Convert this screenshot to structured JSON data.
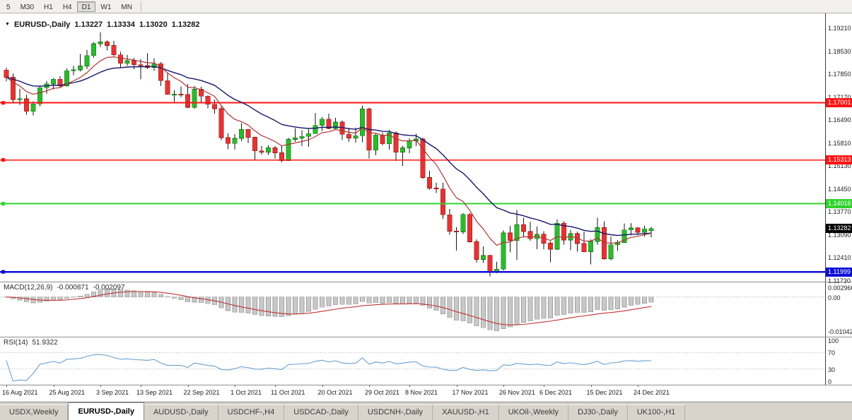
{
  "toolbar": {
    "timeframes": [
      "5",
      "M30",
      "H1",
      "H4",
      "D1",
      "W1",
      "MN"
    ],
    "active": "D1"
  },
  "chart": {
    "header": {
      "symbol": "EURUSD-,Daily",
      "open": "1.13227",
      "high": "1.13334",
      "low": "1.13020",
      "close": "1.13282"
    }
  },
  "price_axis": {
    "labels": [
      "1.19210",
      "1.18530",
      "1.17850",
      "1.17170",
      "1.16490",
      "1.15810",
      "1.15130",
      "1.14450",
      "1.13770",
      "1.13090",
      "1.12410",
      "1.11730"
    ]
  },
  "colors": {
    "bull": "#2eb82e",
    "bull_border": "#157a15",
    "bear": "#e23434",
    "bear_border": "#9e1a1a",
    "wick": "#151515",
    "macd_hist": "#c9c9c9",
    "macd_hist_border": "#9f9f9f",
    "macd_signal": "#c23333",
    "rsi_line": "#6aa0cf",
    "current_tag_bg": "#000000"
  },
  "chart_data": {
    "type": "candlestick",
    "symbol": "EURUSD-",
    "timeframe": "Daily",
    "y_range": [
      1.1173,
      1.1921
    ],
    "ohlc": [
      [
        1.1797,
        1.1804,
        1.1764,
        1.1776
      ],
      [
        1.1776,
        1.1787,
        1.1702,
        1.171
      ],
      [
        1.171,
        1.1742,
        1.1694,
        1.1712
      ],
      [
        1.1712,
        1.1724,
        1.1665,
        1.1675
      ],
      [
        1.1675,
        1.1705,
        1.1663,
        1.1697
      ],
      [
        1.1697,
        1.175,
        1.169,
        1.1745
      ],
      [
        1.1745,
        1.1765,
        1.1727,
        1.1756
      ],
      [
        1.1756,
        1.1774,
        1.174,
        1.177
      ],
      [
        1.177,
        1.1779,
        1.1745,
        1.1751
      ],
      [
        1.1751,
        1.1802,
        1.1748,
        1.1795
      ],
      [
        1.1795,
        1.181,
        1.1782,
        1.1798
      ],
      [
        1.1798,
        1.1845,
        1.1793,
        1.1809
      ],
      [
        1.1809,
        1.1857,
        1.18,
        1.184
      ],
      [
        1.184,
        1.188,
        1.1834,
        1.1875
      ],
      [
        1.1875,
        1.1909,
        1.1865,
        1.188
      ],
      [
        1.188,
        1.1885,
        1.1855,
        1.187
      ],
      [
        1.187,
        1.1884,
        1.1838,
        1.1842
      ],
      [
        1.1842,
        1.1851,
        1.1805,
        1.1817
      ],
      [
        1.1817,
        1.1842,
        1.181,
        1.1825
      ],
      [
        1.1825,
        1.1833,
        1.18,
        1.1813
      ],
      [
        1.1813,
        1.183,
        1.177,
        1.181
      ],
      [
        1.181,
        1.1847,
        1.18,
        1.1805
      ],
      [
        1.1805,
        1.1832,
        1.1795,
        1.1816
      ],
      [
        1.1816,
        1.1821,
        1.175,
        1.1766
      ],
      [
        1.1766,
        1.1788,
        1.1724,
        1.1725
      ],
      [
        1.1725,
        1.1738,
        1.17,
        1.1726
      ],
      [
        1.1726,
        1.1749,
        1.1717,
        1.1725
      ],
      [
        1.1725,
        1.1756,
        1.1684,
        1.1687
      ],
      [
        1.1687,
        1.175,
        1.1683,
        1.174
      ],
      [
        1.174,
        1.1748,
        1.1701,
        1.172
      ],
      [
        1.172,
        1.1722,
        1.1684,
        1.1696
      ],
      [
        1.1696,
        1.171,
        1.1668,
        1.1683
      ],
      [
        1.1683,
        1.169,
        1.159,
        1.1597
      ],
      [
        1.1597,
        1.161,
        1.1563,
        1.158
      ],
      [
        1.158,
        1.1608,
        1.1562,
        1.1595
      ],
      [
        1.1595,
        1.164,
        1.1587,
        1.1621
      ],
      [
        1.1621,
        1.1622,
        1.1581,
        1.1598
      ],
      [
        1.1598,
        1.16,
        1.1529,
        1.1558
      ],
      [
        1.1558,
        1.1572,
        1.1547,
        1.1554
      ],
      [
        1.1554,
        1.1575,
        1.1546,
        1.1567
      ],
      [
        1.1567,
        1.1572,
        1.1535,
        1.1552
      ],
      [
        1.1552,
        1.1572,
        1.1524,
        1.1529
      ],
      [
        1.1529,
        1.1597,
        1.1529,
        1.1592
      ],
      [
        1.1592,
        1.1625,
        1.1585,
        1.1596
      ],
      [
        1.1596,
        1.1619,
        1.1572,
        1.1601
      ],
      [
        1.1601,
        1.1622,
        1.157,
        1.1609
      ],
      [
        1.1609,
        1.167,
        1.1608,
        1.1633
      ],
      [
        1.1633,
        1.1658,
        1.1617,
        1.1652
      ],
      [
        1.1652,
        1.1668,
        1.1622,
        1.1624
      ],
      [
        1.1624,
        1.1656,
        1.162,
        1.1643
      ],
      [
        1.1643,
        1.1648,
        1.159,
        1.1607
      ],
      [
        1.1607,
        1.1626,
        1.1585,
        1.1596
      ],
      [
        1.1596,
        1.1627,
        1.1582,
        1.1603
      ],
      [
        1.1603,
        1.1692,
        1.1583,
        1.1682
      ],
      [
        1.1682,
        1.1686,
        1.1535,
        1.156
      ],
      [
        1.156,
        1.1609,
        1.1545,
        1.1605
      ],
      [
        1.1605,
        1.1612,
        1.1575,
        1.1579
      ],
      [
        1.1579,
        1.162,
        1.1562,
        1.1611
      ],
      [
        1.1611,
        1.1616,
        1.1528,
        1.1554
      ],
      [
        1.1554,
        1.1573,
        1.1513,
        1.1567
      ],
      [
        1.1567,
        1.1595,
        1.1551,
        1.1588
      ],
      [
        1.1588,
        1.1609,
        1.1572,
        1.1593
      ],
      [
        1.1593,
        1.1597,
        1.1475,
        1.1479
      ],
      [
        1.1479,
        1.1499,
        1.1443,
        1.1448
      ],
      [
        1.1448,
        1.1464,
        1.1433,
        1.1445
      ],
      [
        1.1445,
        1.1464,
        1.1356,
        1.1369
      ],
      [
        1.1369,
        1.1386,
        1.131,
        1.132
      ],
      [
        1.132,
        1.1332,
        1.1263,
        1.1318
      ],
      [
        1.1318,
        1.1374,
        1.1312,
        1.137
      ],
      [
        1.137,
        1.1374,
        1.1287,
        1.1289
      ],
      [
        1.1289,
        1.1296,
        1.1227,
        1.1237
      ],
      [
        1.1237,
        1.1275,
        1.1226,
        1.1248
      ],
      [
        1.1248,
        1.125,
        1.1186,
        1.12
      ],
      [
        1.12,
        1.123,
        1.1196,
        1.1208
      ],
      [
        1.1208,
        1.1323,
        1.1204,
        1.1315
      ],
      [
        1.1315,
        1.1336,
        1.1258,
        1.1293
      ],
      [
        1.1293,
        1.1383,
        1.1235,
        1.1339
      ],
      [
        1.1339,
        1.136,
        1.1302,
        1.1319
      ],
      [
        1.1319,
        1.1348,
        1.1292,
        1.1298
      ],
      [
        1.1298,
        1.1334,
        1.1267,
        1.1311
      ],
      [
        1.1311,
        1.132,
        1.1267,
        1.1285
      ],
      [
        1.1285,
        1.129,
        1.1228,
        1.1267
      ],
      [
        1.1267,
        1.1355,
        1.1265,
        1.1344
      ],
      [
        1.1344,
        1.135,
        1.128,
        1.1294
      ],
      [
        1.1294,
        1.1324,
        1.1264,
        1.1313
      ],
      [
        1.1313,
        1.1319,
        1.126,
        1.1284
      ],
      [
        1.1284,
        1.1319,
        1.1258,
        1.126
      ],
      [
        1.126,
        1.1296,
        1.1222,
        1.129
      ],
      [
        1.129,
        1.136,
        1.128,
        1.1331
      ],
      [
        1.1331,
        1.1349,
        1.1236,
        1.1239
      ],
      [
        1.1239,
        1.1304,
        1.1234,
        1.128
      ],
      [
        1.128,
        1.1294,
        1.1262,
        1.1287
      ],
      [
        1.1287,
        1.1343,
        1.1285,
        1.1324
      ],
      [
        1.1324,
        1.1344,
        1.1308,
        1.133
      ],
      [
        1.133,
        1.1333,
        1.1308,
        1.1317
      ],
      [
        1.1317,
        1.1336,
        1.1304,
        1.1327
      ],
      [
        1.13227,
        1.13334,
        1.1302,
        1.13282
      ]
    ],
    "x_labels": [
      {
        "label": "16 Aug 2021",
        "i": 0
      },
      {
        "label": "25 Aug 2021",
        "i": 7
      },
      {
        "label": "3 Sep 2021",
        "i": 14
      },
      {
        "label": "13 Sep 2021",
        "i": 20
      },
      {
        "label": "22 Sep 2021",
        "i": 27
      },
      {
        "label": "1 Oct 2021",
        "i": 34
      },
      {
        "label": "11 Oct 2021",
        "i": 40
      },
      {
        "label": "20 Oct 2021",
        "i": 47
      },
      {
        "label": "29 Oct 2021",
        "i": 54
      },
      {
        "label": "8 Nov 2021",
        "i": 60
      },
      {
        "label": "17 Nov 2021",
        "i": 67
      },
      {
        "label": "26 Nov 2021",
        "i": 74
      },
      {
        "label": "6 Dec 2021",
        "i": 80
      },
      {
        "label": "15 Dec 2021",
        "i": 87
      },
      {
        "label": "24 Dec 2021",
        "i": 94
      }
    ],
    "overlays": [
      {
        "name": "ma-slow",
        "type": "ema",
        "period": 20,
        "color": "#16166b",
        "width": 1.4
      },
      {
        "name": "ma-fast",
        "type": "ema",
        "period": 8,
        "color": "#b03434",
        "width": 1.2
      }
    ],
    "hlines": [
      {
        "price": 1.17001,
        "label": "1.17001",
        "color": "#fe1414",
        "width": 2
      },
      {
        "price": 1.15313,
        "label": "1.15313",
        "color": "#fe1414",
        "width": 1.5
      },
      {
        "price": 1.14016,
        "label": "1.14016",
        "color": "#2fd32f",
        "width": 2
      },
      {
        "price": 1.11999,
        "label": "1.11999",
        "color": "#0d0dd8",
        "width": 2.5
      }
    ],
    "current_price": {
      "value": 1.13282,
      "label": "1.13282"
    }
  },
  "macd_panel": {
    "title": "MACD(12,26,9)",
    "value_main": "-0.000871",
    "value_signal": "-0.002097",
    "fast": 12,
    "slow": 26,
    "signal": 9,
    "axis_values": [
      0.002966,
      0,
      -0.01042
    ],
    "axis_texts": [
      "0.002966",
      "0.00",
      "-0.01042"
    ]
  },
  "rsi_panel": {
    "title": "RSI(14)",
    "value": "51.9322",
    "period": 14,
    "levels": [
      100,
      70,
      30,
      0
    ],
    "level_texts": [
      "100",
      "70",
      "30",
      "0"
    ]
  },
  "tabs": {
    "active": "EURUSD-,Daily",
    "items": [
      "USDX,Weekly",
      "EURUSD-,Daily",
      "AUDUSD-,Daily",
      "USDCHF-,H4",
      "USDCAD-,Daily",
      "USDCNH-,Daily",
      "XAUUSD-,H1",
      "UKOil-,Weekly",
      "DJ30-,Daily",
      "UK100-,H1"
    ]
  }
}
